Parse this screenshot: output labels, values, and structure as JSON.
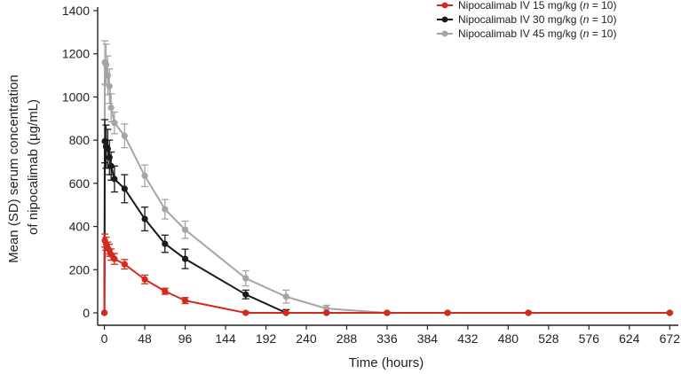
{
  "chart_data": {
    "type": "line",
    "title": "",
    "xlabel": "Time (hours)",
    "ylabel_lines": [
      "Mean (SD) serum concentration",
      "of nipocalimab (µg/mL)"
    ],
    "xlim": [
      -8,
      678
    ],
    "ylim": [
      0,
      1400
    ],
    "xticks": [
      0,
      48,
      96,
      144,
      192,
      240,
      288,
      336,
      384,
      432,
      480,
      528,
      576,
      624,
      672
    ],
    "xtick_labels": [
      "0",
      "48",
      "96",
      "144",
      "192",
      "240",
      "288",
      "336",
      "384",
      "432",
      "480",
      "528",
      "576",
      "624",
      "672"
    ],
    "yticks": [
      0,
      200,
      400,
      600,
      800,
      1000,
      1200,
      1400
    ],
    "ytick_labels": [
      "0",
      "200",
      "400",
      "600",
      "800",
      "1000",
      "1200",
      "1400"
    ],
    "legend_position": "top-right",
    "series": [
      {
        "name": "Nipocalimab IV 15 mg/kg",
        "legend_prefix": "Nipocalimab IV 15 mg/kg (",
        "legend_n": "n",
        "legend_suffix": " = 10)",
        "color": "#d42a1e",
        "x": [
          0,
          0.5,
          2,
          4,
          6,
          8,
          12,
          24,
          48,
          72,
          96,
          168,
          216,
          264,
          336,
          408,
          504,
          672
        ],
        "y": [
          0,
          335,
          320,
          300,
          290,
          270,
          250,
          225,
          155,
          100,
          57,
          0,
          0,
          0,
          0,
          0,
          0,
          0
        ],
        "sd": [
          0,
          30,
          30,
          28,
          28,
          26,
          25,
          22,
          20,
          14,
          14,
          5,
          0,
          0,
          0,
          0,
          0,
          0
        ]
      },
      {
        "name": "Nipocalimab IV 30 mg/kg",
        "legend_prefix": "Nipocalimab IV 30 mg/kg (",
        "legend_n": "n",
        "legend_suffix": " = 10)",
        "color": "#1a1a1a",
        "x": [
          0,
          0.5,
          2,
          4,
          6,
          8,
          12,
          24,
          48,
          72,
          96,
          168,
          216,
          264,
          336,
          408,
          504,
          672
        ],
        "y": [
          0,
          795,
          770,
          760,
          720,
          680,
          620,
          575,
          435,
          320,
          250,
          85,
          0,
          0,
          0,
          0,
          0,
          0
        ],
        "sd": [
          0,
          100,
          100,
          90,
          80,
          65,
          60,
          65,
          55,
          40,
          45,
          20,
          15,
          0,
          0,
          0,
          0,
          0
        ]
      },
      {
        "name": "Nipocalimab IV 45 mg/kg",
        "legend_prefix": "Nipocalimab IV 45 mg/kg (",
        "legend_n": "n",
        "legend_suffix": " = 10)",
        "color": "#a8a3a6",
        "x": [
          0,
          0.5,
          2,
          4,
          6,
          8,
          12,
          24,
          48,
          72,
          96,
          168,
          216,
          264,
          336,
          408,
          504,
          672
        ],
        "y": [
          0,
          1160,
          1150,
          1100,
          1050,
          950,
          880,
          820,
          635,
          480,
          385,
          160,
          75,
          20,
          0,
          0,
          0,
          0
        ],
        "sd": [
          0,
          100,
          95,
          90,
          80,
          65,
          50,
          55,
          50,
          45,
          40,
          35,
          30,
          15,
          5,
          5,
          5,
          5
        ]
      }
    ]
  }
}
